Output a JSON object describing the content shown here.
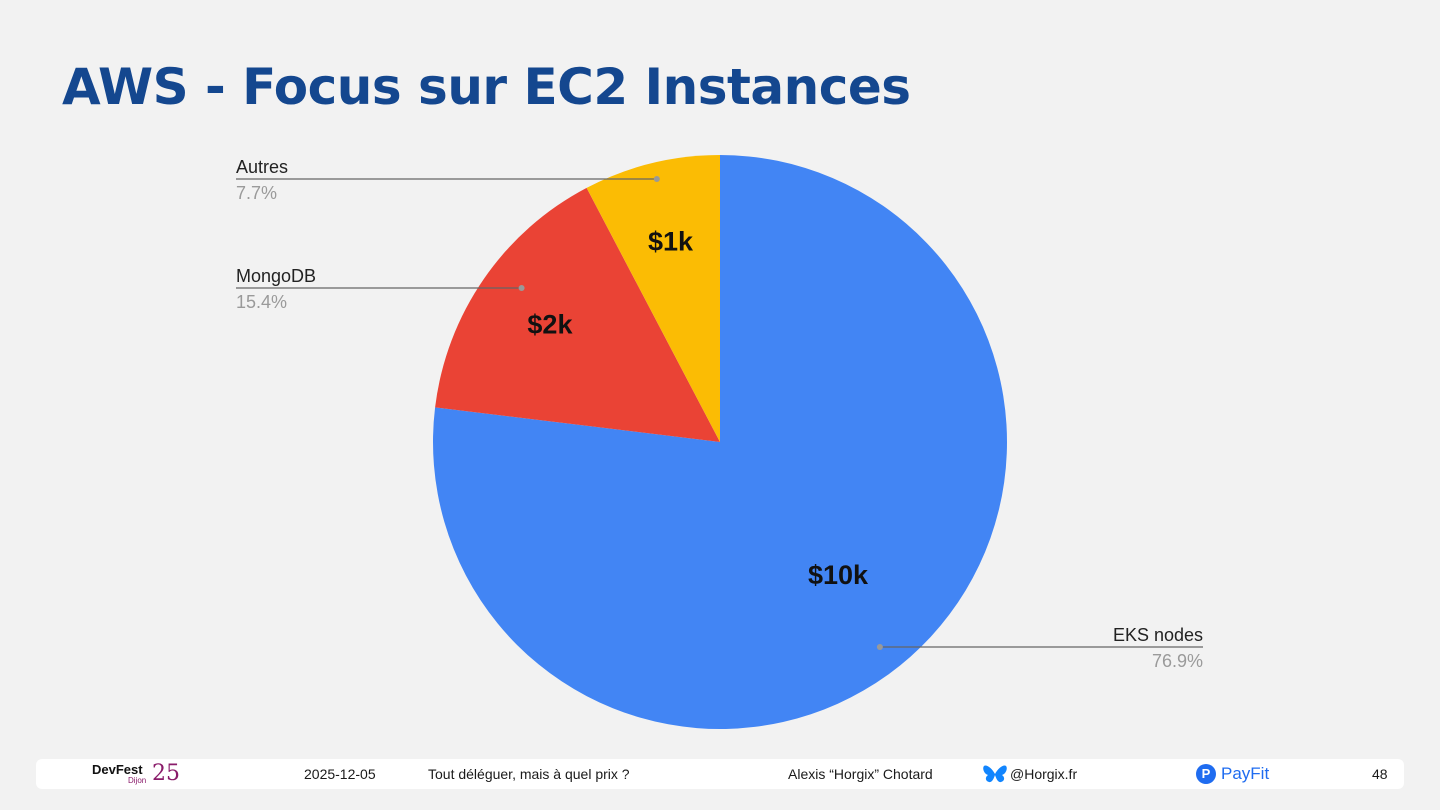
{
  "slide": {
    "title": "AWS - Focus sur EC2 Instances"
  },
  "chart_data": {
    "type": "pie",
    "title": "",
    "slices": [
      {
        "name": "EKS nodes",
        "value": 10,
        "value_label": "$10k",
        "percent_label": "76.9%",
        "color": "#4285f4"
      },
      {
        "name": "MongoDB",
        "value": 2,
        "value_label": "$2k",
        "percent_label": "15.4%",
        "color": "#ea4335"
      },
      {
        "name": "Autres",
        "value": 1,
        "value_label": "$1k",
        "percent_label": "7.7%",
        "color": "#fbbc04"
      }
    ],
    "start": "12 o'clock",
    "direction": "clockwise",
    "legend": "none (leader-line labels)"
  },
  "footer": {
    "devfest_name": "DevFest",
    "devfest_city": "Dijon",
    "devfest_year": "25",
    "date": "2025-12-05",
    "talk_title": "Tout déléguer, mais à quel prix ?",
    "author": "Alexis “Horgix” Chotard",
    "handle": "@Horgix.fr",
    "payfit_mark": "P",
    "payfit_name": "PayFit",
    "page_number": "48",
    "bluesky_icon": "butterfly-icon",
    "bluesky_color": "#1185fe"
  }
}
